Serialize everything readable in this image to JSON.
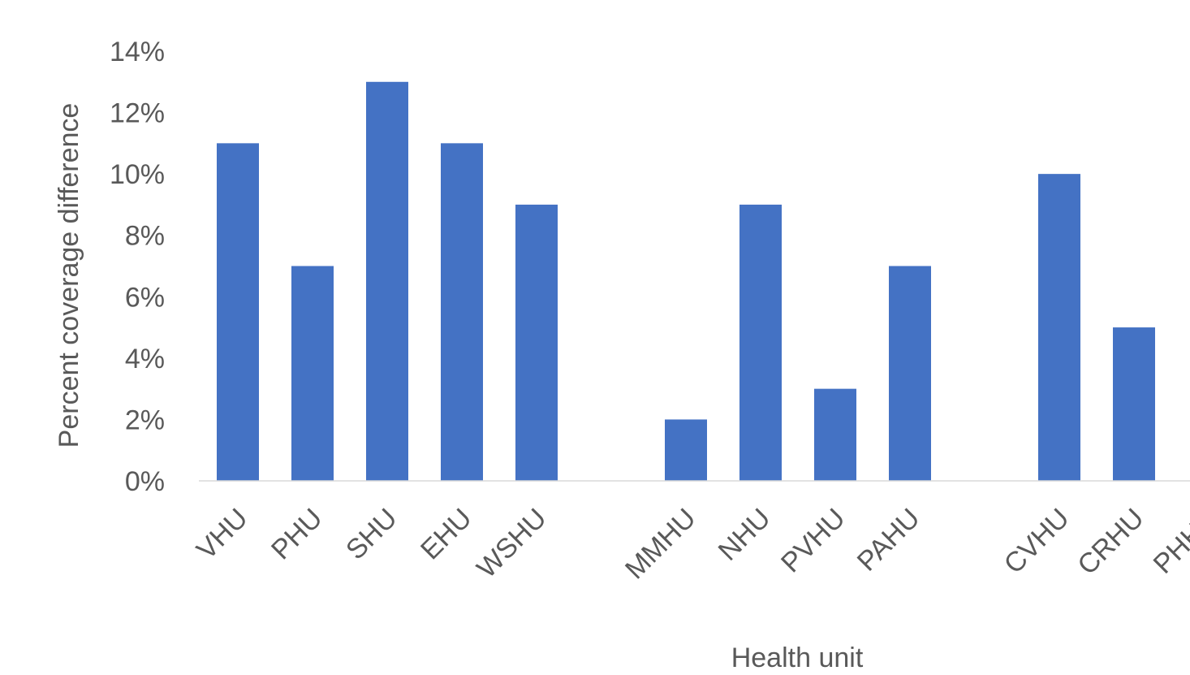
{
  "chart_data": {
    "type": "bar",
    "title": "",
    "xlabel": "Health unit",
    "ylabel": "Percent coverage difference",
    "ylim": [
      0,
      14
    ],
    "yticks": [
      0,
      2,
      4,
      6,
      8,
      10,
      12,
      14
    ],
    "ytick_labels": [
      "0%",
      "2%",
      "4%",
      "6%",
      "8%",
      "10%",
      "12%",
      "14%"
    ],
    "categories": [
      "VHU",
      "PHU",
      "SHU",
      "EHU",
      "WSHU",
      "",
      "MMHU",
      "NHU",
      "PVHU",
      "PAHU",
      "",
      "CVHU",
      "CRHU",
      "PHHU"
    ],
    "values": [
      11,
      7,
      13,
      11,
      9,
      null,
      2,
      9,
      3,
      7,
      null,
      10,
      5,
      null
    ],
    "bar_color": "#4472C4",
    "grid": false,
    "legend": "none"
  }
}
